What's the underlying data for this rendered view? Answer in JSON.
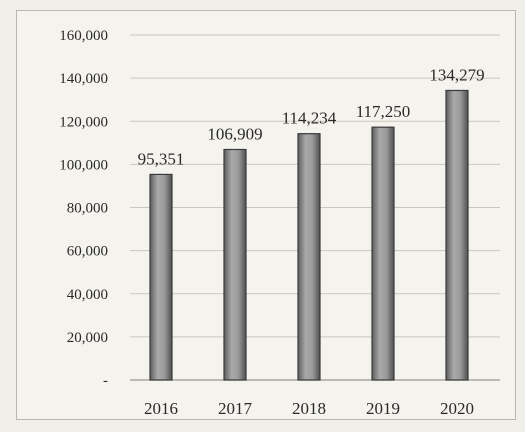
{
  "chart_data": {
    "type": "bar",
    "categories": [
      "2016",
      "2017",
      "2018",
      "2019",
      "2020"
    ],
    "values": [
      95351,
      106909,
      114234,
      117250,
      134279
    ],
    "data_labels": [
      "95,351",
      "106,909",
      "114,234",
      "117,250",
      "134,279"
    ],
    "y_tick_labels": [
      "-",
      "20,000",
      "40,000",
      "60,000",
      "80,000",
      "100,000",
      "120,000",
      "140,000",
      "160,000"
    ],
    "y_ticks": [
      0,
      20000,
      40000,
      60000,
      80000,
      100000,
      120000,
      140000,
      160000
    ],
    "ylim": [
      0,
      160000
    ],
    "grid": true,
    "legend": "none",
    "bar_color": "#8c8c8c",
    "bar_edge_color": "#3a3a3a"
  }
}
